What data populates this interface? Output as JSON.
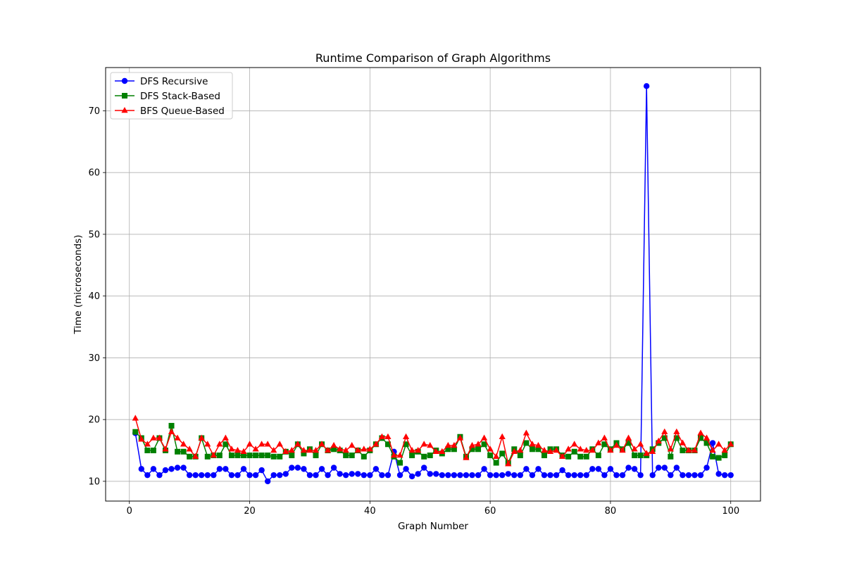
{
  "chart_data": {
    "type": "line",
    "title": "Runtime Comparison of Graph Algorithms",
    "xlabel": "Graph Number",
    "ylabel": "Time (microseconds)",
    "xlim": [
      -3.95,
      104.95
    ],
    "ylim": [
      6.8,
      77.0
    ],
    "xticks": [
      0,
      20,
      40,
      60,
      80,
      100
    ],
    "yticks": [
      10,
      20,
      30,
      40,
      50,
      60,
      70
    ],
    "grid": true,
    "legend_position": "upper-left",
    "x": [
      1,
      2,
      3,
      4,
      5,
      6,
      7,
      8,
      9,
      10,
      11,
      12,
      13,
      14,
      15,
      16,
      17,
      18,
      19,
      20,
      21,
      22,
      23,
      24,
      25,
      26,
      27,
      28,
      29,
      30,
      31,
      32,
      33,
      34,
      35,
      36,
      37,
      38,
      39,
      40,
      41,
      42,
      43,
      44,
      45,
      46,
      47,
      48,
      49,
      50,
      51,
      52,
      53,
      54,
      55,
      56,
      57,
      58,
      59,
      60,
      61,
      62,
      63,
      64,
      65,
      66,
      67,
      68,
      69,
      70,
      71,
      72,
      73,
      74,
      75,
      76,
      77,
      78,
      79,
      80,
      81,
      82,
      83,
      84,
      85,
      86,
      87,
      88,
      89,
      90,
      91,
      92,
      93,
      94,
      95,
      96,
      97,
      98,
      99,
      100
    ],
    "series": [
      {
        "name": "DFS Recursive",
        "color": "#0000ff",
        "marker": "circle",
        "values": [
          17.8,
          12.0,
          11.0,
          12.0,
          11.0,
          11.8,
          12.0,
          12.2,
          12.2,
          11.0,
          11.0,
          11.0,
          11.0,
          11.0,
          12.0,
          12.0,
          11.0,
          11.0,
          12.0,
          11.0,
          11.0,
          11.8,
          10.0,
          11.0,
          11.0,
          11.2,
          12.2,
          12.2,
          12.0,
          11.0,
          11.0,
          12.0,
          11.0,
          12.2,
          11.2,
          11.0,
          11.2,
          11.2,
          11.0,
          11.0,
          12.0,
          11.0,
          11.0,
          14.8,
          11.0,
          12.0,
          10.8,
          11.2,
          12.2,
          11.2,
          11.2,
          11.0,
          11.0,
          11.0,
          11.0,
          11.0,
          11.0,
          11.0,
          12.0,
          11.0,
          11.0,
          11.0,
          11.2,
          11.0,
          11.0,
          12.0,
          11.0,
          12.0,
          11.0,
          11.0,
          11.0,
          11.8,
          11.0,
          11.0,
          11.0,
          11.0,
          12.0,
          12.0,
          11.0,
          12.0,
          11.0,
          11.0,
          12.2,
          12.0,
          11.0,
          74.0,
          11.0,
          12.2,
          12.2,
          11.0,
          12.2,
          11.0,
          11.0,
          11.0,
          11.0,
          12.2,
          16.2,
          11.2,
          11.0,
          11.0
        ]
      },
      {
        "name": "DFS Stack-Based",
        "color": "#008000",
        "marker": "square",
        "values": [
          18.0,
          17.0,
          15.0,
          15.0,
          17.0,
          15.0,
          19.0,
          14.8,
          14.8,
          14.0,
          14.0,
          17.0,
          14.0,
          14.2,
          14.2,
          16.0,
          14.2,
          14.2,
          14.2,
          14.2,
          14.2,
          14.2,
          14.2,
          14.0,
          14.0,
          14.8,
          14.2,
          16.0,
          14.5,
          15.2,
          14.2,
          16.0,
          15.0,
          15.2,
          15.0,
          14.2,
          14.2,
          15.0,
          14.0,
          15.0,
          16.0,
          17.0,
          16.0,
          14.0,
          13.0,
          16.0,
          14.2,
          14.8,
          14.0,
          14.2,
          15.0,
          14.5,
          15.2,
          15.2,
          17.2,
          14.0,
          15.2,
          15.2,
          16.0,
          14.2,
          13.0,
          14.5,
          13.0,
          15.2,
          14.2,
          16.2,
          15.2,
          15.2,
          14.2,
          15.2,
          15.2,
          14.2,
          14.0,
          14.8,
          14.0,
          14.0,
          15.2,
          14.2,
          16.0,
          15.2,
          16.2,
          15.2,
          16.2,
          14.2,
          14.2,
          14.2,
          15.2,
          16.2,
          17.0,
          14.0,
          17.0,
          15.0,
          15.0,
          15.0,
          17.0,
          16.2,
          14.0,
          13.8,
          14.2,
          16.0
        ]
      },
      {
        "name": "BFS Queue-Based",
        "color": "#ff0000",
        "marker": "triangle",
        "values": [
          20.2,
          16.8,
          16.0,
          17.0,
          17.0,
          15.2,
          18.0,
          17.0,
          16.0,
          15.2,
          14.0,
          17.0,
          16.0,
          14.2,
          16.0,
          17.0,
          15.2,
          15.0,
          14.8,
          16.0,
          15.2,
          16.0,
          16.0,
          15.0,
          16.0,
          14.8,
          15.0,
          16.0,
          15.0,
          15.0,
          15.0,
          16.0,
          15.0,
          15.8,
          15.2,
          15.0,
          15.8,
          15.0,
          15.2,
          15.2,
          16.0,
          17.2,
          17.2,
          14.2,
          14.2,
          17.2,
          15.0,
          15.0,
          16.0,
          15.8,
          14.8,
          14.8,
          15.8,
          15.8,
          17.0,
          13.8,
          15.8,
          16.0,
          17.0,
          15.2,
          14.0,
          17.2,
          12.8,
          14.8,
          15.0,
          17.8,
          16.0,
          15.8,
          15.0,
          14.8,
          15.0,
          14.0,
          15.2,
          16.0,
          15.2,
          15.0,
          15.0,
          16.2,
          17.0,
          15.0,
          15.8,
          15.0,
          17.0,
          15.2,
          16.0,
          14.5,
          14.8,
          16.5,
          18.0,
          15.2,
          18.0,
          16.2,
          15.0,
          15.0,
          17.8,
          17.0,
          15.0,
          16.0,
          15.0,
          16.0
        ]
      }
    ]
  }
}
